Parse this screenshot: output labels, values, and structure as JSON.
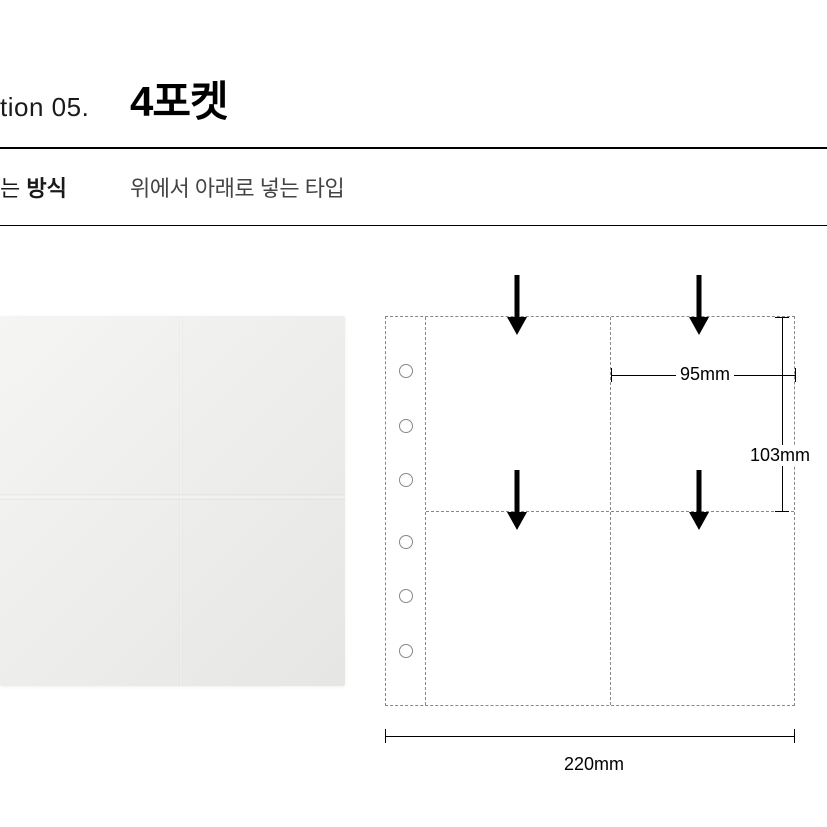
{
  "header": {
    "option_label": "tion 05.",
    "title": "4포켓"
  },
  "sub": {
    "label_prefix": "는 ",
    "label_bold": "방식",
    "description": "위에서 아래로 넣는 타입"
  },
  "diagram": {
    "pocket_width_label": "95mm",
    "pocket_height_label": "103mm",
    "total_width_label": "220mm",
    "colors": {
      "border": "#888888",
      "arrow": "#000000",
      "text": "#000000",
      "photo_bg_start": "#f5f5f4",
      "photo_bg_end": "#e6e6e4"
    },
    "hole_count": 6,
    "hole_positions_pct": [
      14,
      28,
      42,
      58,
      72,
      86
    ]
  }
}
